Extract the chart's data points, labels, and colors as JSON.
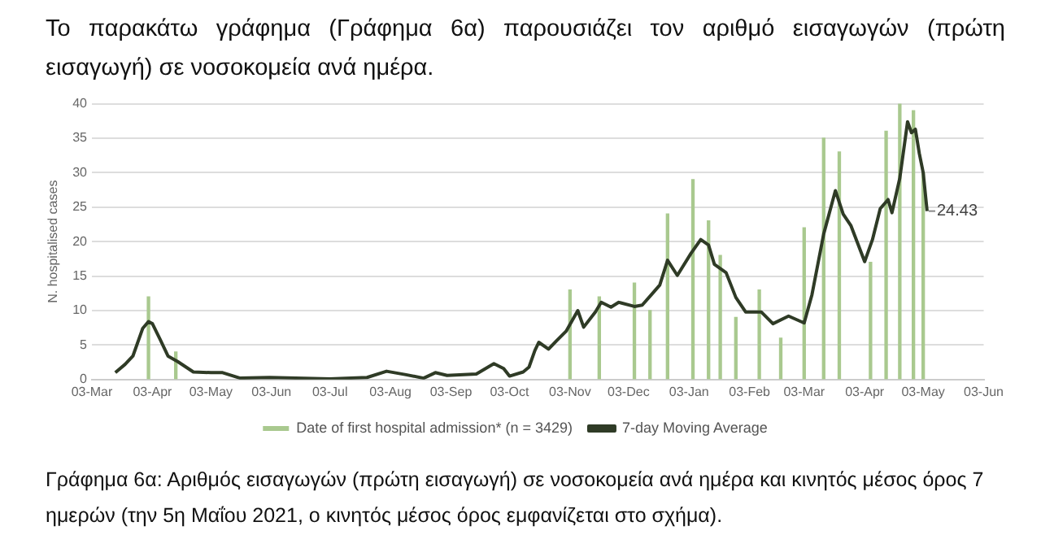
{
  "chart_data": {
    "type": "line",
    "title": "Το παρακάτω γράφημα (Γράφημα 6α) παρουσιάζει τον αριθμό εισαγωγών (πρώτη εισαγωγή) σε νοσοκομεία ανά ημέρα.",
    "ylabel": "N. hospitalised cases",
    "annotations": [
      {
        "text": "24.43",
        "x": "2021-05-05",
        "y": 24.43
      },
      "Γράφημα 6α: Αριθμός εισαγωγών (πρώτη εισαγωγή) σε νοσοκομεία ανά ημέρα και κινητός μέσος όρος 7 ημερών (την 5η Μαΐου 2021, ο κινητός μέσος όρος εμφανίζεται στο σχήμα)."
    ],
    "series": [
      {
        "name": "Date of first hospital admission* (n = 3429)",
        "type": "bar",
        "color": "#a9c98f",
        "x": [
          "2020-04-01",
          "2020-04-15",
          "2020-11-03",
          "2020-11-18",
          "2020-12-06",
          "2020-12-14",
          "2020-12-23",
          "2021-01-05",
          "2021-01-13",
          "2021-01-19",
          "2021-01-27",
          "2021-02-08",
          "2021-02-19",
          "2021-03-03",
          "2021-03-13",
          "2021-03-21",
          "2021-04-06",
          "2021-04-14",
          "2021-04-21",
          "2021-04-28",
          "2021-05-03"
        ],
        "values": [
          12,
          4,
          13,
          12,
          14,
          10,
          24,
          29,
          23,
          18,
          9,
          13,
          6,
          22,
          35,
          33,
          17,
          36,
          40,
          39,
          30
        ]
      },
      {
        "name": "7-day Moving Average",
        "color": "#2f3b26",
        "x": [
          "2020-03-15",
          "2020-03-20",
          "2020-03-24",
          "2020-03-29",
          "2020-04-01",
          "2020-04-03",
          "2020-04-07",
          "2020-04-11",
          "2020-04-16",
          "2020-04-24",
          "2020-05-03",
          "2020-05-09",
          "2020-05-18",
          "2020-06-02",
          "2020-07-03",
          "2020-07-22",
          "2020-08-01",
          "2020-08-11",
          "2020-08-20",
          "2020-08-26",
          "2020-09-01",
          "2020-09-16",
          "2020-09-25",
          "2020-09-30",
          "2020-10-03",
          "2020-10-10",
          "2020-10-13",
          "2020-10-16",
          "2020-10-18",
          "2020-10-23",
          "2020-10-27",
          "2020-11-01",
          "2020-11-07",
          "2020-11-10",
          "2020-11-16",
          "2020-11-19",
          "2020-11-24",
          "2020-11-28",
          "2020-12-06",
          "2020-12-10",
          "2020-12-15",
          "2020-12-19",
          "2020-12-23",
          "2020-12-28",
          "2021-01-04",
          "2021-01-09",
          "2021-01-13",
          "2021-01-16",
          "2021-01-22",
          "2021-01-27",
          "2021-02-01",
          "2021-02-09",
          "2021-02-15",
          "2021-02-23",
          "2021-03-03",
          "2021-03-07",
          "2021-03-13",
          "2021-03-19",
          "2021-03-23",
          "2021-03-27",
          "2021-04-03",
          "2021-04-07",
          "2021-04-11",
          "2021-04-15",
          "2021-04-17",
          "2021-04-21",
          "2021-04-25",
          "2021-04-27",
          "2021-04-29",
          "2021-05-01",
          "2021-05-03",
          "2021-05-05"
        ],
        "values": [
          1.0,
          2.2,
          3.4,
          7.4,
          8.4,
          8.1,
          5.8,
          3.4,
          2.6,
          1.1,
          1.0,
          1.0,
          0.2,
          0.3,
          0.1,
          0.3,
          1.2,
          0.7,
          0.2,
          1.0,
          0.6,
          0.8,
          2.3,
          1.6,
          0.5,
          1.1,
          1.8,
          4.2,
          5.4,
          4.4,
          5.6,
          7.0,
          10.0,
          7.6,
          9.8,
          11.2,
          10.5,
          11.2,
          10.6,
          10.8,
          12.4,
          13.7,
          17.3,
          15.1,
          18.3,
          20.3,
          19.5,
          16.7,
          15.5,
          11.9,
          9.8,
          9.8,
          8.1,
          9.2,
          8.2,
          12.3,
          21.1,
          27.4,
          24.0,
          22.3,
          17.1,
          20.3,
          24.8,
          26.1,
          24.2,
          29.2,
          37.4,
          35.8,
          36.3,
          32.8,
          30.0,
          24.43
        ]
      }
    ],
    "xlim": [
      "2020-03-03",
      "2021-06-03"
    ],
    "xticks": [
      {
        "value": "2020-03-03",
        "label": "03-Mar"
      },
      {
        "value": "2020-04-03",
        "label": "03-Apr"
      },
      {
        "value": "2020-05-03",
        "label": "03-May"
      },
      {
        "value": "2020-06-03",
        "label": "03-Jun"
      },
      {
        "value": "2020-07-03",
        "label": "03-Jul"
      },
      {
        "value": "2020-08-03",
        "label": "03-Aug"
      },
      {
        "value": "2020-09-03",
        "label": "03-Sep"
      },
      {
        "value": "2020-10-03",
        "label": "03-Oct"
      },
      {
        "value": "2020-11-03",
        "label": "03-Nov"
      },
      {
        "value": "2020-12-03",
        "label": "03-Dec"
      },
      {
        "value": "2021-01-03",
        "label": "03-Jan"
      },
      {
        "value": "2021-02-03",
        "label": "03-Feb"
      },
      {
        "value": "2021-03-03",
        "label": "03-Mar"
      },
      {
        "value": "2021-04-03",
        "label": "03-Apr"
      },
      {
        "value": "2021-05-03",
        "label": "03-May"
      },
      {
        "value": "2021-06-03",
        "label": "03-Jun"
      }
    ],
    "ylim": [
      0,
      40
    ],
    "yticks": [
      0,
      5,
      10,
      15,
      20,
      25,
      30,
      35,
      40
    ],
    "grid": "y",
    "legend": "bottom",
    "marker": "none",
    "line_style": "solid"
  }
}
